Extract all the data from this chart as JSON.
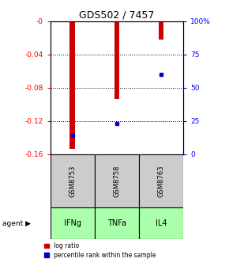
{
  "title": "GDS502 / 7457",
  "samples": [
    "GSM8753",
    "GSM8758",
    "GSM8763"
  ],
  "agents": [
    "IFNg",
    "TNFa",
    "IL4"
  ],
  "log_ratios": [
    -0.153,
    -0.093,
    -0.022
  ],
  "percentiles": [
    0.14,
    0.23,
    0.6
  ],
  "ylim_left": [
    -0.16,
    0.0
  ],
  "ylim_right": [
    0.0,
    1.0
  ],
  "yticks_left": [
    0.0,
    -0.04,
    -0.08,
    -0.12,
    -0.16
  ],
  "yticks_right": [
    0.0,
    0.25,
    0.5,
    0.75,
    1.0
  ],
  "ytick_labels_right": [
    "0",
    "25",
    "50",
    "75",
    "100%"
  ],
  "ytick_labels_left": [
    "-0",
    "-0.04",
    "-0.08",
    "-0.12",
    "-0.16"
  ],
  "bar_color_red": "#cc0000",
  "dot_color_blue": "#0000cc",
  "agent_bg_color": "#aaffaa",
  "sample_bg_color": "#cccccc",
  "legend_red": "log ratio",
  "legend_blue": "percentile rank within the sample",
  "bar_width": 0.12,
  "agent_label": "agent"
}
